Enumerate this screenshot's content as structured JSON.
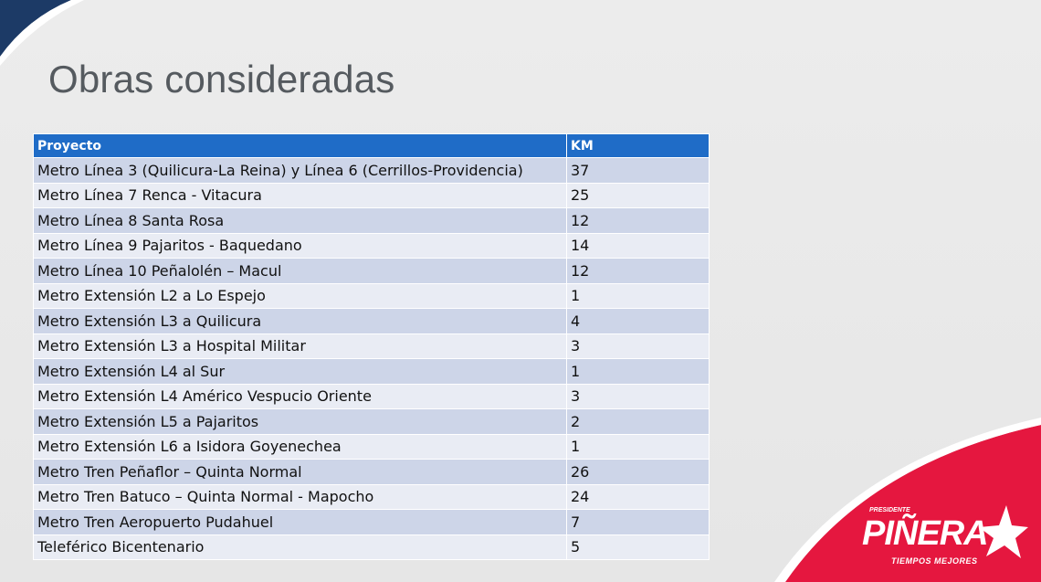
{
  "slide": {
    "title": "Obras consideradas"
  },
  "table": {
    "headers": [
      "Proyecto",
      "KM"
    ],
    "rows": [
      [
        "Metro Línea 3 (Quilicura-La Reina) y Línea 6 (Cerrillos-Providencia)",
        "37"
      ],
      [
        "Metro Línea 7 Renca - Vitacura",
        "25"
      ],
      [
        "Metro Línea 8 Santa Rosa",
        "12"
      ],
      [
        "Metro Línea 9 Pajaritos - Baquedano",
        "14"
      ],
      [
        "Metro Línea 10 Peñalolén – Macul",
        "12"
      ],
      [
        "Metro Extensión L2 a Lo Espejo",
        "1"
      ],
      [
        "Metro Extensión L3 a Quilicura",
        "4"
      ],
      [
        "Metro Extensión L3 a Hospital Militar",
        "3"
      ],
      [
        "Metro Extensión L4 al Sur",
        "1"
      ],
      [
        "Metro Extensión L4 Américo Vespucio Oriente",
        "3"
      ],
      [
        "Metro Extensión L5 a Pajaritos",
        "2"
      ],
      [
        "Metro Extensión L6 a Isidora Goyenechea",
        "1"
      ],
      [
        "Metro Tren Peñaflor – Quinta Normal",
        "26"
      ],
      [
        "Metro Tren Batuco – Quinta Normal - Mapocho",
        "24"
      ],
      [
        "Metro Tren Aeropuerto Pudahuel",
        "7"
      ],
      [
        "Teleférico Bicentenario",
        "5"
      ]
    ]
  },
  "logo": {
    "top_text": "PRESIDENTE",
    "word": "PIÑERA",
    "bottom_text": "TIEMPOS MEJORES",
    "icon": "star-icon"
  },
  "colors": {
    "header_blue": "#1f6cc7",
    "row_odd": "#cdd5e8",
    "row_even": "#e9ecf4",
    "brand_red": "#e5173f",
    "corner_navy": "#1c3a66"
  }
}
